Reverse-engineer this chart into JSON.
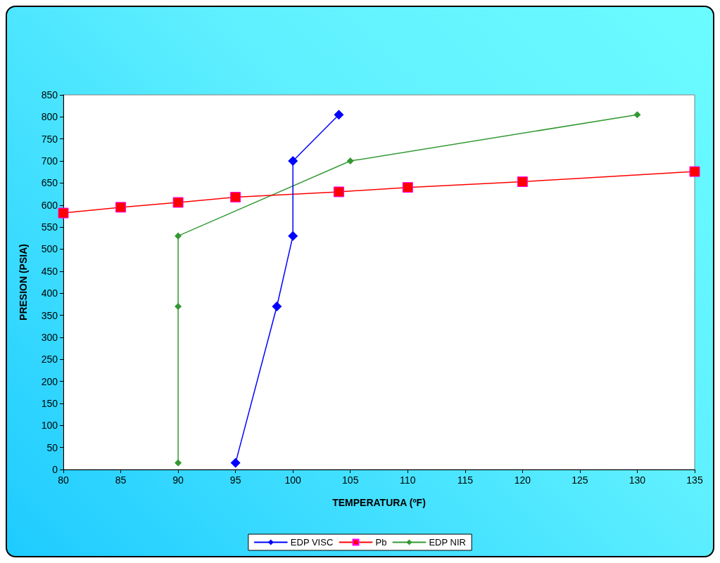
{
  "chart_data": {
    "type": "line",
    "xlabel": "TEMPERATURA (ºF)",
    "ylabel": "PRESION (PSIA)",
    "xlim": [
      80,
      135
    ],
    "xticks": [
      80,
      85,
      90,
      95,
      100,
      105,
      110,
      115,
      120,
      125,
      130,
      135
    ],
    "ylim": [
      0,
      850
    ],
    "yticks": [
      0,
      50,
      100,
      150,
      200,
      250,
      300,
      350,
      400,
      450,
      500,
      550,
      600,
      650,
      700,
      750,
      800,
      850
    ],
    "grid": false,
    "legend": "bottom",
    "line_style": "solid",
    "series": [
      {
        "name": "EDP VISC",
        "color": "#0000ff",
        "marker": "diamond",
        "x": [
          95,
          98.6,
          100,
          100,
          104
        ],
        "values": [
          15,
          370,
          530,
          700,
          805
        ]
      },
      {
        "name": "Pb",
        "color": "#ff0000",
        "marker": "square",
        "x": [
          80,
          85,
          90,
          95,
          104,
          110,
          120,
          135
        ],
        "values": [
          582,
          595,
          606,
          618,
          630,
          640,
          653,
          676
        ]
      },
      {
        "name": "EDP NIR",
        "color": "#339933",
        "marker": "diamond",
        "x": [
          90,
          90,
          90,
          105,
          130
        ],
        "values": [
          15,
          370,
          530,
          700,
          805
        ]
      }
    ]
  }
}
